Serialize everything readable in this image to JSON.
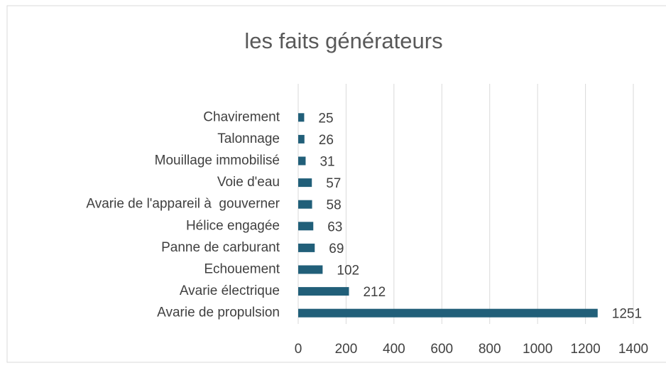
{
  "chart_data": {
    "type": "barh",
    "title": "les faits générateurs",
    "categories": [
      "Chavirement",
      "Talonnage",
      "Mouillage immobilisé",
      "Voie d'eau",
      "Avarie de l'appareil à  gouverner",
      "Hélice engagée",
      "Panne de carburant",
      "Echouement",
      "Avarie électrique",
      "Avarie de propulsion"
    ],
    "values": [
      25,
      26,
      31,
      57,
      58,
      63,
      69,
      102,
      212,
      1251
    ],
    "color": "#215f79",
    "xlim": [
      0,
      1400
    ],
    "xticks": [
      0,
      200,
      400,
      600,
      800,
      1000,
      1200,
      1400
    ],
    "grid": true
  }
}
